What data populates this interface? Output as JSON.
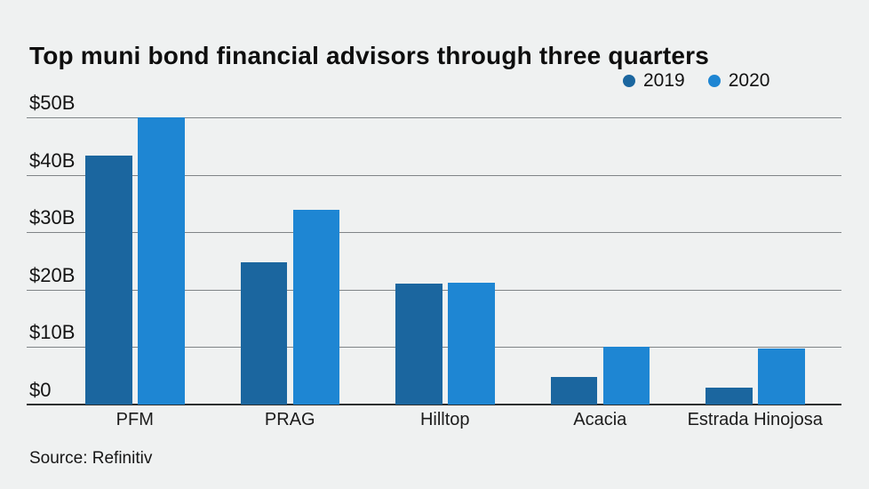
{
  "title": "Top muni bond financial advisors through three quarters",
  "source": "Source: Refinitiv",
  "chart_data": {
    "type": "bar",
    "title": "Top muni bond financial advisors through three quarters",
    "unit": "billions USD",
    "categories": [
      "PFM",
      "PRAG",
      "Hilltop",
      "Acacia",
      "Estrada Hinojosa"
    ],
    "series": [
      {
        "name": "2019",
        "color": "#1b669f",
        "values": [
          43.3,
          24.7,
          21.0,
          4.8,
          2.9
        ]
      },
      {
        "name": "2020",
        "color": "#1e86d3",
        "values": [
          50.0,
          33.9,
          21.2,
          10.0,
          9.8
        ]
      }
    ],
    "ylim": [
      0,
      50
    ],
    "y_ticks": [
      {
        "value": 0,
        "label": "$0"
      },
      {
        "value": 10,
        "label": "$10B"
      },
      {
        "value": 20,
        "label": "$20B"
      },
      {
        "value": 30,
        "label": "$30B"
      },
      {
        "value": 40,
        "label": "$40B"
      },
      {
        "value": 50,
        "label": "$50B"
      }
    ],
    "grid": true,
    "legend_position": "top-right",
    "source": "Source: Refinitiv",
    "colors": {
      "background": "#eff1f1",
      "gridline": "#7f8487",
      "axis": "#2d2f30",
      "text": "#141414"
    }
  }
}
